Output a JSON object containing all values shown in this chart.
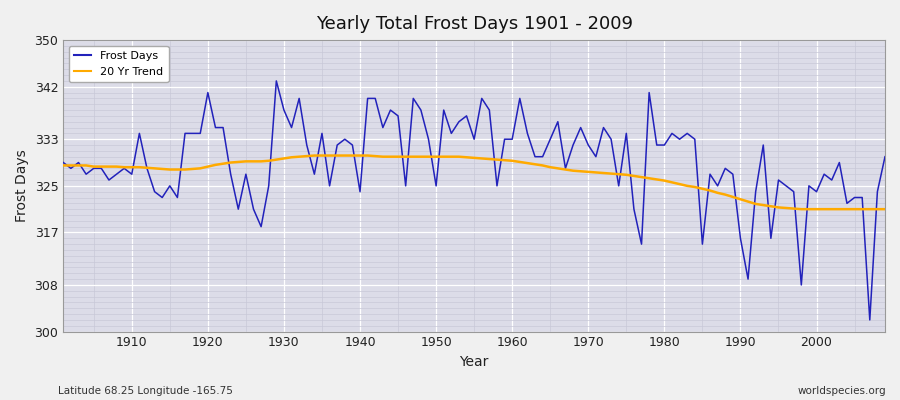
{
  "title": "Yearly Total Frost Days 1901 - 2009",
  "xlabel": "Year",
  "ylabel": "Frost Days",
  "subtitle_left": "Latitude 68.25 Longitude -165.75",
  "subtitle_right": "worldspecies.org",
  "ylim": [
    300,
    350
  ],
  "yticks": [
    300,
    308,
    317,
    325,
    333,
    342,
    350
  ],
  "xlim": [
    1901,
    2009
  ],
  "xticks": [
    1910,
    1920,
    1930,
    1940,
    1950,
    1960,
    1970,
    1980,
    1990,
    2000
  ],
  "frost_days_color": "#2222bb",
  "trend_color": "#ffaa00",
  "background_color": "#dcdce8",
  "grid_major_color": "#ffffff",
  "grid_minor_color": "#c8c8d8",
  "fig_bg": "#f0f0f0",
  "years": [
    1901,
    1902,
    1903,
    1904,
    1905,
    1906,
    1907,
    1908,
    1909,
    1910,
    1911,
    1912,
    1913,
    1914,
    1915,
    1916,
    1917,
    1918,
    1919,
    1920,
    1921,
    1922,
    1923,
    1924,
    1925,
    1926,
    1927,
    1928,
    1929,
    1930,
    1931,
    1932,
    1933,
    1934,
    1935,
    1936,
    1937,
    1938,
    1939,
    1940,
    1941,
    1942,
    1943,
    1944,
    1945,
    1946,
    1947,
    1948,
    1949,
    1950,
    1951,
    1952,
    1953,
    1954,
    1955,
    1956,
    1957,
    1958,
    1959,
    1960,
    1961,
    1962,
    1963,
    1964,
    1965,
    1966,
    1967,
    1968,
    1969,
    1970,
    1971,
    1972,
    1973,
    1974,
    1975,
    1976,
    1977,
    1978,
    1979,
    1980,
    1981,
    1982,
    1983,
    1984,
    1985,
    1986,
    1987,
    1988,
    1989,
    1990,
    1991,
    1992,
    1993,
    1994,
    1995,
    1996,
    1997,
    1998,
    1999,
    2000,
    2001,
    2002,
    2003,
    2004,
    2005,
    2006,
    2007,
    2008,
    2009
  ],
  "frost_days": [
    329,
    328,
    329,
    327,
    328,
    328,
    326,
    327,
    328,
    327,
    334,
    328,
    324,
    323,
    325,
    323,
    334,
    334,
    334,
    341,
    335,
    335,
    327,
    321,
    327,
    321,
    318,
    325,
    343,
    338,
    335,
    340,
    332,
    327,
    334,
    325,
    332,
    333,
    332,
    324,
    340,
    340,
    335,
    338,
    337,
    325,
    340,
    338,
    333,
    325,
    338,
    334,
    336,
    337,
    333,
    340,
    338,
    325,
    333,
    333,
    340,
    334,
    330,
    330,
    333,
    336,
    328,
    332,
    335,
    332,
    330,
    335,
    333,
    325,
    334,
    321,
    315,
    341,
    332,
    332,
    334,
    333,
    334,
    333,
    315,
    327,
    325,
    328,
    327,
    316,
    309,
    324,
    332,
    316,
    326,
    325,
    324,
    308,
    325,
    324,
    327,
    326,
    329,
    322,
    323,
    323,
    302,
    324,
    330
  ],
  "trend_values": [
    328.5,
    328.5,
    328.5,
    328.5,
    328.3,
    328.3,
    328.3,
    328.3,
    328.2,
    328.2,
    328.2,
    328.1,
    328.0,
    327.9,
    327.8,
    327.8,
    327.8,
    327.9,
    328.0,
    328.3,
    328.6,
    328.8,
    329.0,
    329.1,
    329.2,
    329.2,
    329.2,
    329.3,
    329.5,
    329.7,
    329.9,
    330.0,
    330.1,
    330.2,
    330.2,
    330.2,
    330.2,
    330.2,
    330.2,
    330.2,
    330.2,
    330.1,
    330.0,
    330.0,
    330.0,
    330.0,
    330.0,
    330.0,
    330.0,
    330.0,
    330.0,
    330.0,
    330.0,
    329.9,
    329.8,
    329.7,
    329.6,
    329.5,
    329.4,
    329.3,
    329.1,
    328.9,
    328.7,
    328.5,
    328.2,
    328.0,
    327.8,
    327.6,
    327.5,
    327.4,
    327.3,
    327.2,
    327.1,
    327.0,
    326.9,
    326.7,
    326.5,
    326.3,
    326.1,
    325.9,
    325.6,
    325.3,
    325.0,
    324.8,
    324.5,
    324.2,
    323.8,
    323.5,
    323.1,
    322.7,
    322.3,
    321.9,
    321.7,
    321.5,
    321.3,
    321.2,
    321.1,
    321.0,
    321.0,
    321.0,
    321.0,
    321.0,
    321.0,
    321.0,
    321.0,
    321.0,
    321.0,
    321.0,
    321.0
  ]
}
